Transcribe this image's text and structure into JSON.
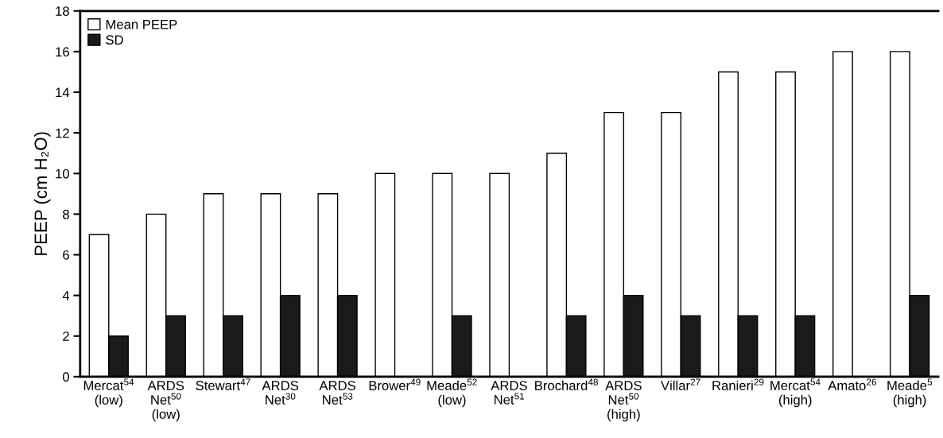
{
  "chart_data": {
    "type": "bar",
    "ylabel": "PEEP (cm H₂O)",
    "categories": [
      "Mercat$^{54}$\n(low)",
      "ARDS\nNet$^{50}$\n(low)",
      "Stewart$^{47}$",
      "ARDS\nNet$^{30}$",
      "ARDS\nNet$^{53}$",
      "Brower$^{49}$",
      "Meade$^{52}$\n(low)",
      "ARDS\nNet$^{51}$",
      "Brochard$^{48}$",
      "ARDS\nNet$^{50}$\n(high)",
      "Villar$^{27}$",
      "Ranieri$^{29}$",
      "Mercat$^{54}$\n(high)",
      "Amato$^{26}$",
      "Meade$^{5}$\n(high)"
    ],
    "series": [
      {
        "name": "Mean PEEP",
        "color": "#ffffff",
        "values": [
          7,
          8,
          9,
          9,
          9,
          10,
          10,
          10,
          11,
          13,
          13,
          15,
          15,
          16,
          16
        ]
      },
      {
        "name": "SD",
        "color": "#1a1a1a",
        "values": [
          2,
          3,
          3,
          4,
          4,
          null,
          3,
          null,
          3,
          4,
          3,
          3,
          3,
          null,
          4
        ]
      }
    ],
    "ylim": [
      0,
      18
    ],
    "yticks": [
      0,
      2,
      4,
      6,
      8,
      10,
      12,
      14,
      16,
      18
    ],
    "grid": false,
    "legend": "top left"
  }
}
